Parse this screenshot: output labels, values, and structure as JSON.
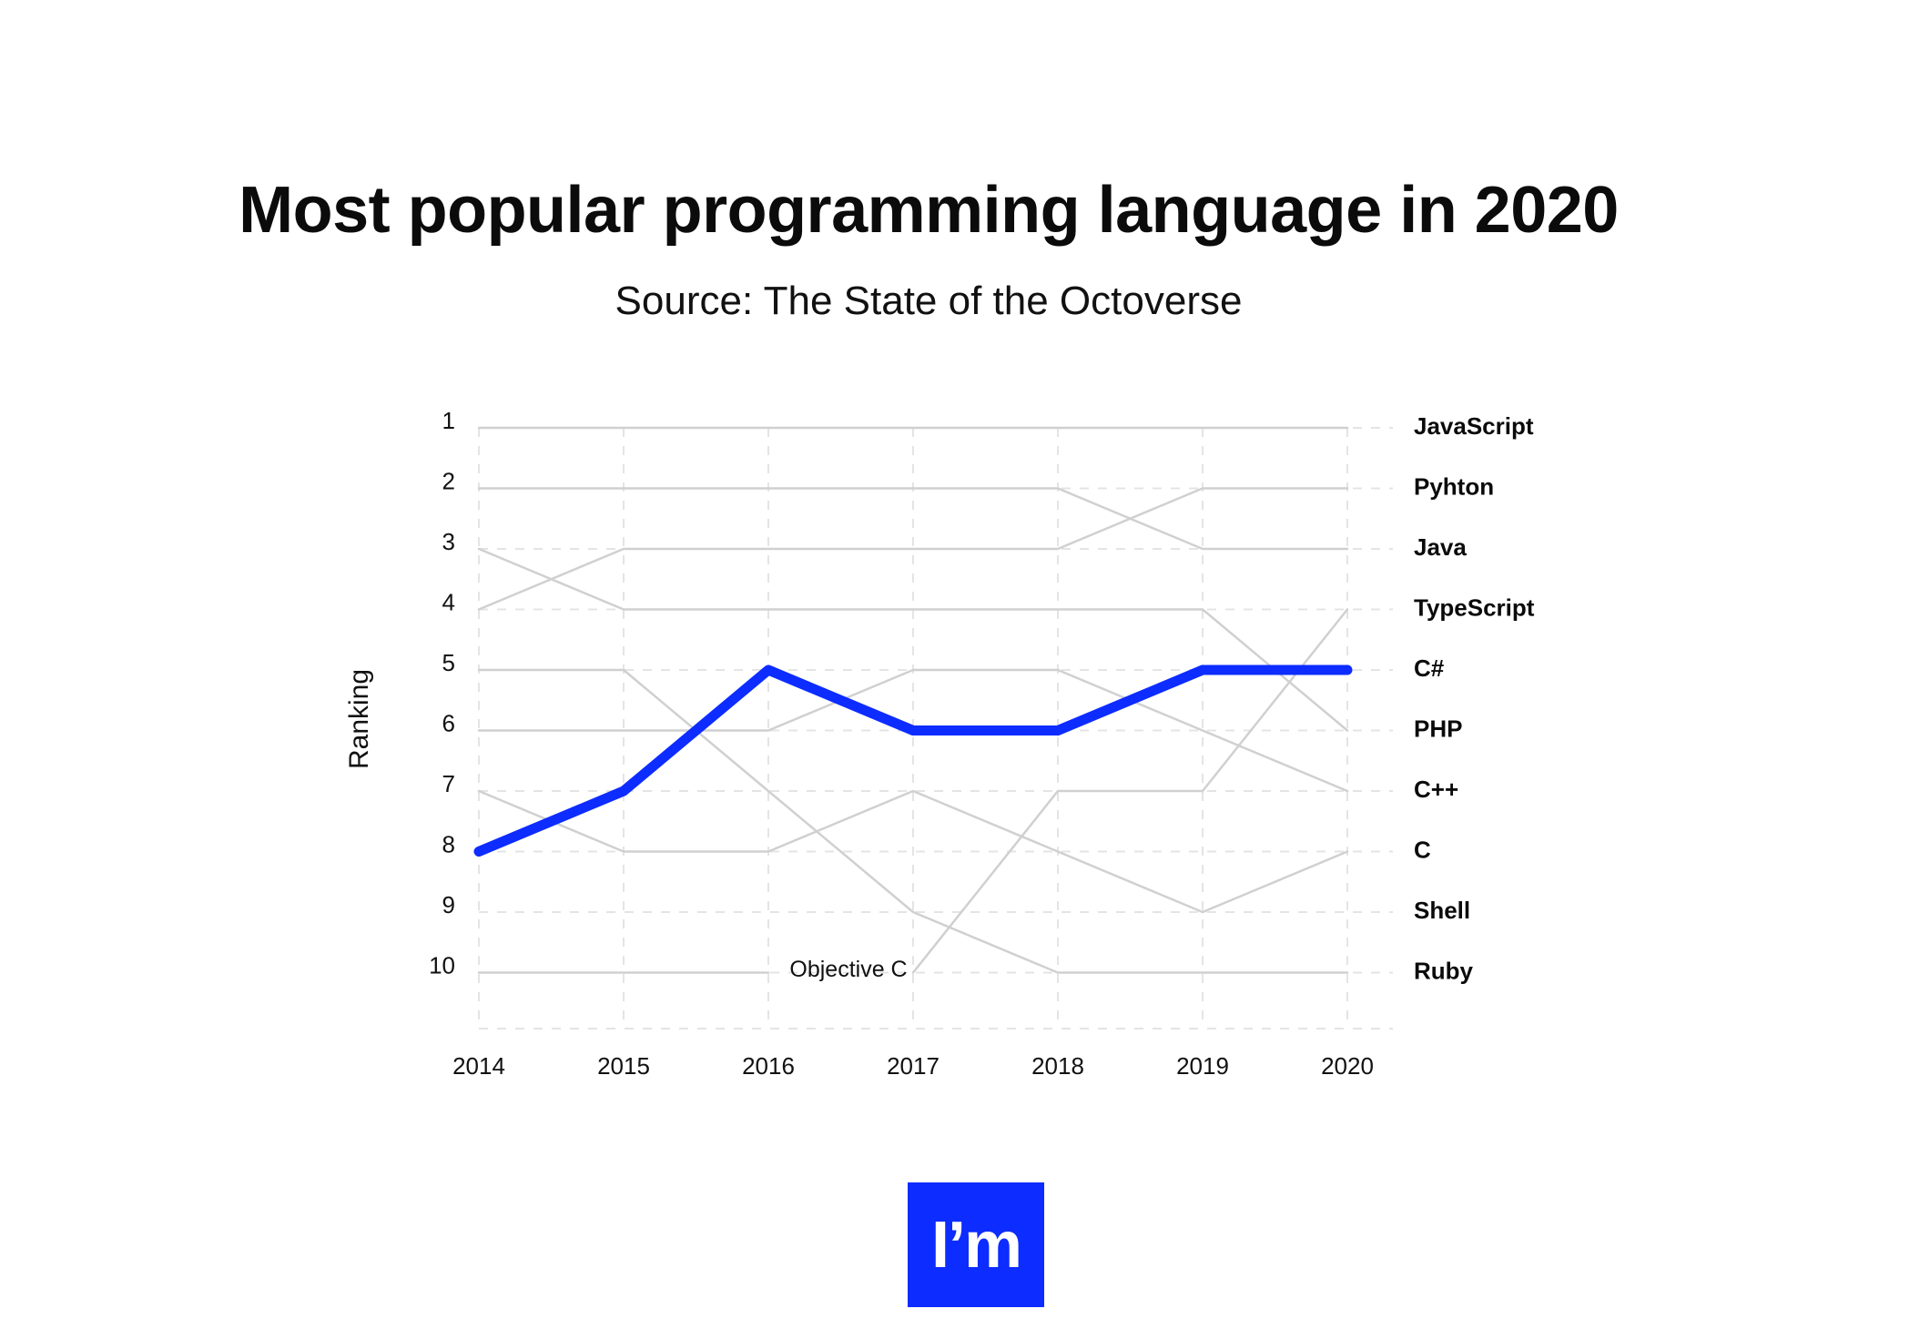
{
  "header": {
    "title": "Most popular programming language in 2020",
    "subtitle": "Source: The State of the Octoverse"
  },
  "logo": {
    "text": "I’m",
    "color": "#0d2cff"
  },
  "chart_data": {
    "type": "line",
    "x": [
      2014,
      2015,
      2016,
      2017,
      2018,
      2019,
      2020
    ],
    "ylabel": "Ranking",
    "xlabel": "",
    "ylim": [
      1,
      10
    ],
    "y_inverted": true,
    "y_ticks": [
      1,
      2,
      3,
      4,
      5,
      6,
      7,
      8,
      9,
      10
    ],
    "grid": true,
    "highlight_color": "#0d2cff",
    "muted_color": "#d0d0d0",
    "end_labels": [
      "JavaScript",
      "Pyhton",
      "Java",
      "TypeScript",
      "C#",
      "PHP",
      "C++",
      "C",
      "Shell",
      "Ruby"
    ],
    "series": [
      {
        "name": "JavaScript",
        "values": [
          1,
          1,
          1,
          1,
          1,
          1,
          1
        ]
      },
      {
        "name": "Pyhton",
        "values": [
          2,
          2,
          2,
          2,
          2,
          3,
          3
        ]
      },
      {
        "name": "Java",
        "values": [
          4,
          3,
          3,
          3,
          3,
          2,
          2
        ]
      },
      {
        "name": "TypeScript",
        "values": [
          null,
          null,
          null,
          10,
          7,
          7,
          4
        ]
      },
      {
        "name": "C#",
        "values": [
          8,
          7,
          5,
          6,
          6,
          5,
          5
        ],
        "highlight": true
      },
      {
        "name": "PHP",
        "values": [
          3,
          4,
          4,
          4,
          4,
          4,
          6
        ]
      },
      {
        "name": "C++",
        "values": [
          6,
          6,
          6,
          5,
          5,
          6,
          7
        ]
      },
      {
        "name": "C",
        "values": [
          7,
          8,
          8,
          7,
          8,
          9,
          8
        ]
      },
      {
        "name": "Shell",
        "values": [
          null,
          null,
          null,
          null,
          null,
          null,
          null
        ]
      },
      {
        "name": "Ruby",
        "values": [
          5,
          5,
          7,
          9,
          10,
          10,
          10
        ]
      },
      {
        "name": "Objective C",
        "values": [
          10,
          10,
          10,
          null,
          null,
          null,
          null
        ]
      }
    ],
    "annotations": [
      {
        "text": "Objective C",
        "x": 2016.6,
        "y": 10
      }
    ]
  }
}
